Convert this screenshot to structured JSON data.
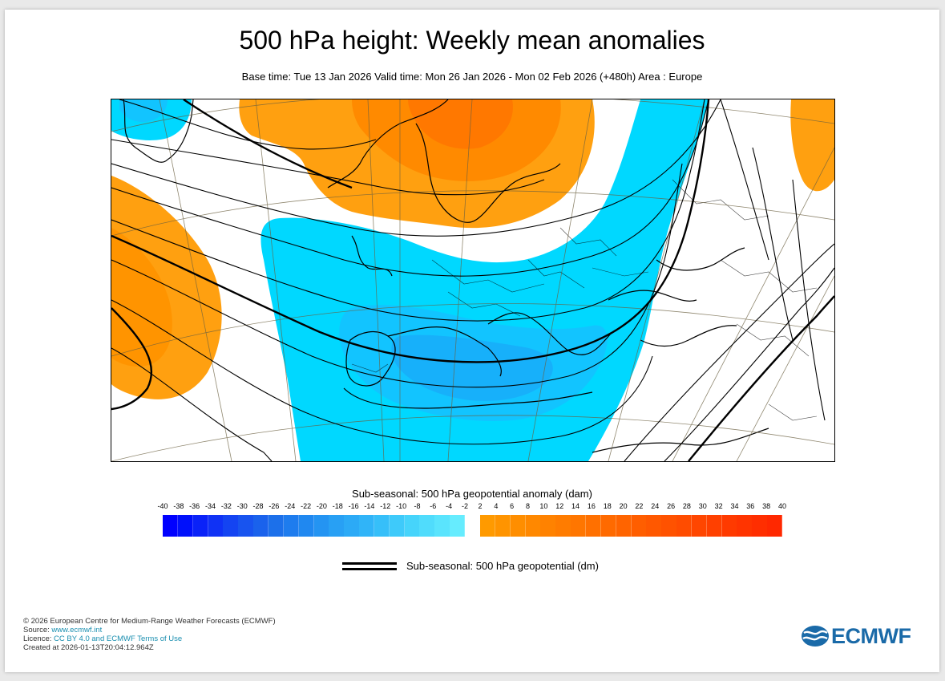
{
  "title": "500 hPa height: Weekly mean anomalies",
  "subtitle": "Base time: Tue 13 Jan 2026 Valid time: Mon 26 Jan 2026 - Mon 02 Feb 2026 (+480h) Area : Europe",
  "legend": {
    "title": "Sub-seasonal: 500 hPa geopotential anomaly (dam)",
    "ticks": [
      "-40",
      "-38",
      "-36",
      "-34",
      "-32",
      "-30",
      "-28",
      "-26",
      "-24",
      "-22",
      "-20",
      "-18",
      "-16",
      "-14",
      "-12",
      "-10",
      "-8",
      "-6",
      "-4",
      "-2",
      "2",
      "4",
      "6",
      "8",
      "10",
      "12",
      "14",
      "16",
      "18",
      "20",
      "22",
      "24",
      "26",
      "28",
      "30",
      "32",
      "34",
      "36",
      "38",
      "40"
    ],
    "negative_colors": [
      "#0000ff",
      "#0010fb",
      "#0a22f8",
      "#1032f5",
      "#1444f2",
      "#1854ef",
      "#1a62ec",
      "#1c70ea",
      "#1e7cee",
      "#2088f0",
      "#2494f2",
      "#28a0f4",
      "#2caaf6",
      "#30b4f8",
      "#36bff9",
      "#3ecafa",
      "#46d4fb",
      "#50dcfc",
      "#5ae4fd",
      "#66ecfe"
    ],
    "positive_colors": [
      "#ff9a00",
      "#ff9400",
      "#ff8e00",
      "#ff8800",
      "#ff8200",
      "#ff7c00",
      "#ff7600",
      "#ff7000",
      "#ff6a00",
      "#ff6400",
      "#ff5e00",
      "#ff5800",
      "#ff5200",
      "#ff4c00",
      "#ff4600",
      "#ff4000",
      "#ff3a00",
      "#ff3400",
      "#ff2e00",
      "#ff2800"
    ],
    "contour_label": "Sub-seasonal: 500 hPa geopotential (dm)"
  },
  "map": {
    "area": "Europe",
    "anomaly_colors": {
      "orange": "#ffa010",
      "orange_mid": "#ff8a00",
      "orange_dark": "#ff6a00",
      "cyan": "#00d8ff",
      "cyan_mid": "#12c4ff",
      "cyan_dark": "#1aa6f8"
    }
  },
  "footer": {
    "copyright": "© 2026 European Centre for Medium-Range Weather Forecasts (ECMWF)",
    "source_label": "Source: ",
    "source_link": "www.ecmwf.int",
    "licence_label": "Licence: ",
    "licence_link": "CC BY 4.0 and ECMWF Terms of Use",
    "created": "Created at 2026-01-13T20:04:12.964Z"
  },
  "logo": {
    "text": "ECMWF",
    "icon": "ecmwf-logo-icon",
    "color": "#1a6aa8"
  }
}
